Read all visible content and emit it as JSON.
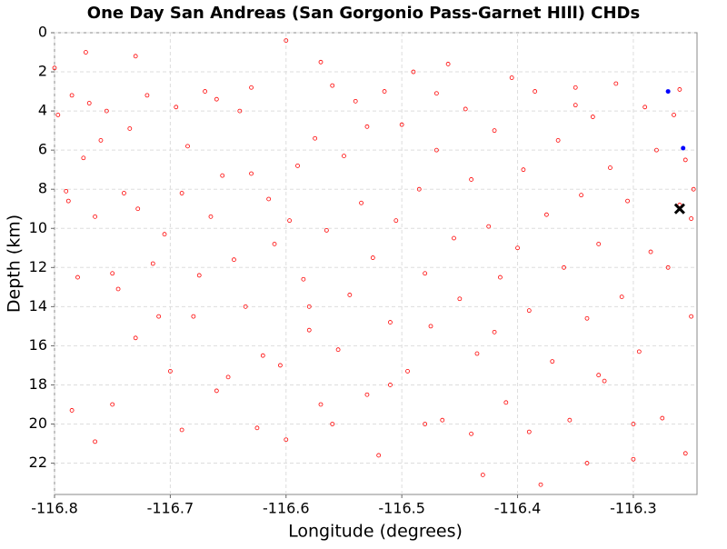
{
  "chart_data": {
    "type": "scatter",
    "title": "One Day San Andreas (San Gorgonio Pass-Garnet HIll) CHDs",
    "x_label": "Longitude (degrees)",
    "y_label": "Depth (km)",
    "xlim": [
      -116.8,
      -116.245
    ],
    "ylim": [
      23.6,
      0
    ],
    "y_inverted": true,
    "xticks": [
      -116.8,
      -116.7,
      -116.6,
      -116.5,
      -116.4,
      -116.3
    ],
    "yticks": [
      0,
      2,
      4,
      6,
      8,
      10,
      12,
      14,
      16,
      18,
      20,
      22
    ],
    "grid": true,
    "series": [
      {
        "color": "#ff0000",
        "marker": "open-circle",
        "x": [
          -116.8,
          -116.797,
          -116.79,
          -116.788,
          -116.785,
          -116.78,
          -116.775,
          -116.773,
          -116.77,
          -116.765,
          -116.76,
          -116.755,
          -116.75,
          -116.745,
          -116.74,
          -116.735,
          -116.73,
          -116.728,
          -116.72,
          -116.715,
          -116.71,
          -116.705,
          -116.7,
          -116.695,
          -116.69,
          -116.685,
          -116.68,
          -116.675,
          -116.67,
          -116.665,
          -116.66,
          -116.655,
          -116.65,
          -116.645,
          -116.64,
          -116.635,
          -116.63,
          -116.625,
          -116.62,
          -116.615,
          -116.61,
          -116.605,
          -116.6,
          -116.597,
          -116.59,
          -116.585,
          -116.58,
          -116.575,
          -116.57,
          -116.565,
          -116.56,
          -116.555,
          -116.55,
          -116.545,
          -116.54,
          -116.535,
          -116.53,
          -116.525,
          -116.52,
          -116.515,
          -116.51,
          -116.505,
          -116.5,
          -116.495,
          -116.49,
          -116.485,
          -116.48,
          -116.475,
          -116.47,
          -116.465,
          -116.46,
          -116.455,
          -116.45,
          -116.445,
          -116.44,
          -116.435,
          -116.43,
          -116.425,
          -116.42,
          -116.415,
          -116.41,
          -116.405,
          -116.4,
          -116.395,
          -116.39,
          -116.385,
          -116.38,
          -116.375,
          -116.37,
          -116.365,
          -116.36,
          -116.355,
          -116.35,
          -116.345,
          -116.34,
          -116.335,
          -116.33,
          -116.325,
          -116.32,
          -116.315,
          -116.31,
          -116.305,
          -116.3,
          -116.295,
          -116.29,
          -116.285,
          -116.28,
          -116.275,
          -116.27,
          -116.265,
          -116.26,
          -116.255,
          -116.25,
          -116.248,
          -116.3,
          -116.26,
          -116.34,
          -116.44,
          -116.6,
          -116.69,
          -116.765,
          -116.785,
          -116.56,
          -116.48,
          -116.39,
          -116.63,
          -116.57,
          -116.53,
          -116.47,
          -116.35,
          -116.25,
          -116.255,
          -116.73,
          -116.75,
          -116.66,
          -116.58,
          -116.51,
          -116.42,
          -116.33
        ],
        "values": [
          1.8,
          4.2,
          8.1,
          8.6,
          3.2,
          12.5,
          6.4,
          1.0,
          3.6,
          9.4,
          5.5,
          4.0,
          12.3,
          13.1,
          8.2,
          4.9,
          1.2,
          9.0,
          3.2,
          11.8,
          14.5,
          10.3,
          17.3,
          3.8,
          8.2,
          5.8,
          14.5,
          12.4,
          3.0,
          9.4,
          3.4,
          7.3,
          17.6,
          11.6,
          4.0,
          14.0,
          7.2,
          20.2,
          16.5,
          8.5,
          10.8,
          17.0,
          0.4,
          9.6,
          6.8,
          12.6,
          15.2,
          5.4,
          19.0,
          10.1,
          2.7,
          16.2,
          6.3,
          13.4,
          3.5,
          8.7,
          18.5,
          11.5,
          21.6,
          3.0,
          14.8,
          9.6,
          4.7,
          17.3,
          2.0,
          8.0,
          12.3,
          15.0,
          6.0,
          19.8,
          1.6,
          10.5,
          13.6,
          3.9,
          7.5,
          16.4,
          22.6,
          9.9,
          5.0,
          12.5,
          18.9,
          2.3,
          11.0,
          7.0,
          14.2,
          3.0,
          23.1,
          9.3,
          16.8,
          5.5,
          12.0,
          19.8,
          2.8,
          8.3,
          14.6,
          4.3,
          10.8,
          17.8,
          6.9,
          2.6,
          13.5,
          8.6,
          20.0,
          16.3,
          3.8,
          11.2,
          6.0,
          19.7,
          12.0,
          4.2,
          8.8,
          21.5,
          14.5,
          8.0,
          21.8,
          2.9,
          22.0,
          20.5,
          20.8,
          20.3,
          20.9,
          19.3,
          20.0,
          20.0,
          20.4,
          2.8,
          1.5,
          4.8,
          3.1,
          3.7,
          9.5,
          6.5,
          15.6,
          19.0,
          18.3,
          14.0,
          18.0,
          15.3,
          17.5
        ]
      },
      {
        "color": "#0000ff",
        "marker": "dot",
        "x": [
          -116.27,
          -116.257
        ],
        "values": [
          3.0,
          5.9
        ]
      },
      {
        "color": "#000000",
        "marker": "cross",
        "x": [
          -116.26
        ],
        "values": [
          9.0
        ]
      }
    ]
  }
}
